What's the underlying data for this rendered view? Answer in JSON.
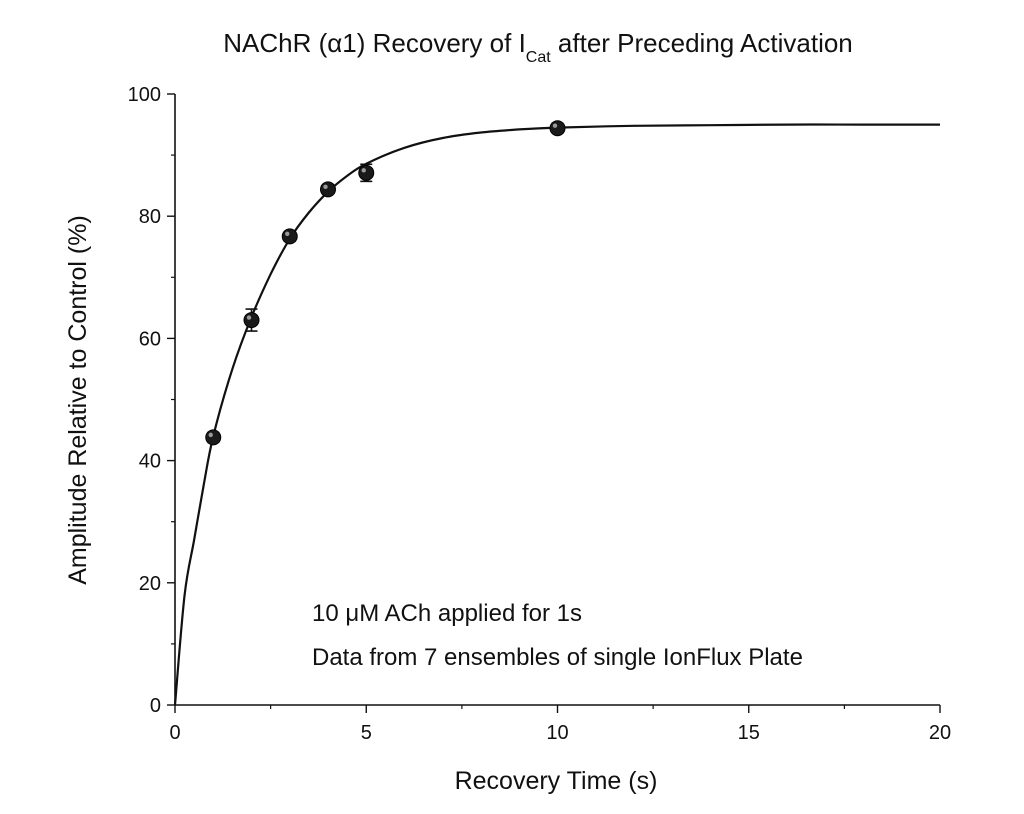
{
  "chart_data": {
    "type": "scatter",
    "title": {
      "prefix": "NAChR (α1) Recovery of I",
      "subscript": "Cat",
      "suffix": " after Preceding Activation"
    },
    "xlabel": "Recovery Time (s)",
    "ylabel": "Amplitude Relative to Control (%)",
    "xlim": [
      0,
      20
    ],
    "ylim": [
      0,
      100
    ],
    "xticks": [
      0,
      5,
      10,
      15,
      20
    ],
    "yticks": [
      0,
      20,
      40,
      60,
      80,
      100
    ],
    "grid": false,
    "legend": "none",
    "series": [
      {
        "x": [
          1,
          2,
          3,
          4,
          5,
          10
        ],
        "y": [
          43.8,
          63.0,
          76.7,
          84.4,
          87.1,
          94.4
        ],
        "err": [
          0.8,
          1.8,
          0.8,
          0.6,
          1.4,
          0.8
        ]
      }
    ],
    "fit": {
      "type": "exponential",
      "x": [
        0,
        0.25,
        0.5,
        0.75,
        1,
        1.5,
        2,
        2.5,
        3,
        3.5,
        4,
        4.5,
        5,
        6,
        7,
        8,
        9,
        10,
        12,
        14,
        16,
        18,
        20
      ],
      "y": [
        0,
        18.0,
        27.0,
        36.0,
        44.0,
        55.0,
        63.5,
        70.5,
        76.3,
        80.6,
        84.0,
        86.6,
        88.6,
        91.2,
        92.8,
        93.7,
        94.2,
        94.5,
        94.8,
        94.9,
        95.0,
        95.0,
        95.0
      ]
    },
    "annotations": [
      "10 μM ACh applied for 1s",
      "Data from 7 ensembles of single IonFlux Plate"
    ]
  }
}
